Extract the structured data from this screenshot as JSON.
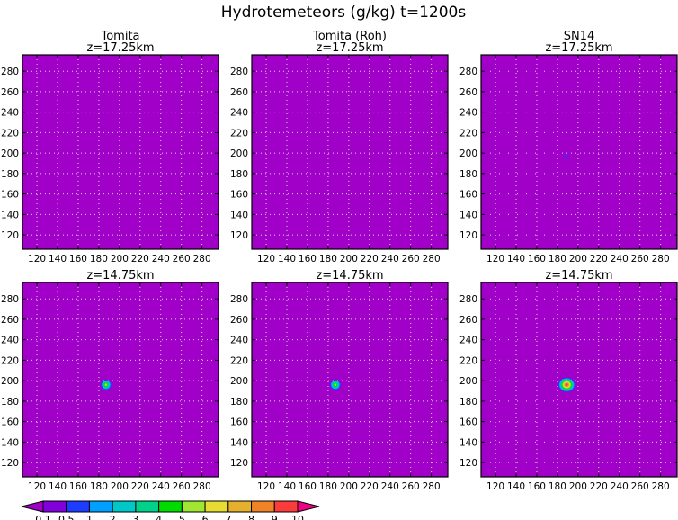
{
  "figure": {
    "title": "Hydrotemeteors (g/kg) t=1200s"
  },
  "chart_data": [
    {
      "type": "heatmap",
      "column_title": "Tomita",
      "level_label": "z=17.25km",
      "xlim": [
        106,
        296
      ],
      "ylim": [
        106,
        296
      ],
      "xticks": [
        120,
        140,
        160,
        180,
        200,
        220,
        240,
        260,
        280
      ],
      "yticks": [
        120,
        140,
        160,
        180,
        200,
        220,
        240,
        260,
        280
      ],
      "grid": true,
      "background_value": "0.1-0.5",
      "features": []
    },
    {
      "type": "heatmap",
      "column_title": "Tomita (Roh)",
      "level_label": "z=17.25km",
      "xlim": [
        106,
        296
      ],
      "ylim": [
        106,
        296
      ],
      "xticks": [
        120,
        140,
        160,
        180,
        200,
        220,
        240,
        260,
        280
      ],
      "yticks": [
        120,
        140,
        160,
        180,
        200,
        220,
        240,
        260,
        280
      ],
      "grid": true,
      "background_value": "0.1-0.5",
      "features": []
    },
    {
      "type": "heatmap",
      "column_title": "SN14",
      "level_label": "z=17.25km",
      "xlim": [
        106,
        296
      ],
      "ylim": [
        106,
        296
      ],
      "xticks": [
        120,
        140,
        160,
        180,
        200,
        220,
        240,
        260,
        280
      ],
      "yticks": [
        120,
        140,
        160,
        180,
        200,
        220,
        240,
        260,
        280
      ],
      "grid": true,
      "background_value": "0.1-0.5",
      "features": [
        {
          "x": 188,
          "y": 197,
          "max_level": 1,
          "rx": 2,
          "ry": 1.5
        }
      ]
    },
    {
      "type": "heatmap",
      "column_title": "",
      "level_label": "z=14.75km",
      "xlim": [
        106,
        296
      ],
      "ylim": [
        106,
        296
      ],
      "xticks": [
        120,
        140,
        160,
        180,
        200,
        220,
        240,
        260,
        280
      ],
      "yticks": [
        120,
        140,
        160,
        180,
        200,
        220,
        240,
        260,
        280
      ],
      "grid": true,
      "background_value": "0.1-0.5",
      "features": [
        {
          "x": 187,
          "y": 196,
          "max_level": 6,
          "rx": 5,
          "ry": 5
        }
      ]
    },
    {
      "type": "heatmap",
      "column_title": "",
      "level_label": "z=14.75km",
      "xlim": [
        106,
        296
      ],
      "ylim": [
        106,
        296
      ],
      "xticks": [
        120,
        140,
        160,
        180,
        200,
        220,
        240,
        260,
        280
      ],
      "yticks": [
        120,
        140,
        160,
        180,
        200,
        220,
        240,
        260,
        280
      ],
      "grid": true,
      "background_value": "0.1-0.5",
      "features": [
        {
          "x": 187,
          "y": 196,
          "max_level": 6,
          "rx": 5,
          "ry": 5
        }
      ]
    },
    {
      "type": "heatmap",
      "column_title": "",
      "level_label": "z=14.75km",
      "xlim": [
        106,
        296
      ],
      "ylim": [
        106,
        296
      ],
      "xticks": [
        120,
        140,
        160,
        180,
        200,
        220,
        240,
        260,
        280
      ],
      "yticks": [
        120,
        140,
        160,
        180,
        200,
        220,
        240,
        260,
        280
      ],
      "grid": true,
      "background_value": "0.1-0.5",
      "features": [
        {
          "x": 189,
          "y": 196,
          "max_level": 10,
          "rx": 8,
          "ry": 7
        }
      ]
    }
  ],
  "colorbar": {
    "labels": [
      "0.1",
      "0.5",
      "1",
      "2",
      "3",
      "4",
      "5",
      "6",
      "7",
      "8",
      "9",
      "10"
    ],
    "colors": [
      "#a000c8",
      "#8200dc",
      "#1e3cff",
      "#00a0ff",
      "#00c8c8",
      "#00d28c",
      "#00dc00",
      "#a0e632",
      "#e6dc32",
      "#e6af2d",
      "#f08228",
      "#fa3c3c",
      "#f00082"
    ]
  }
}
